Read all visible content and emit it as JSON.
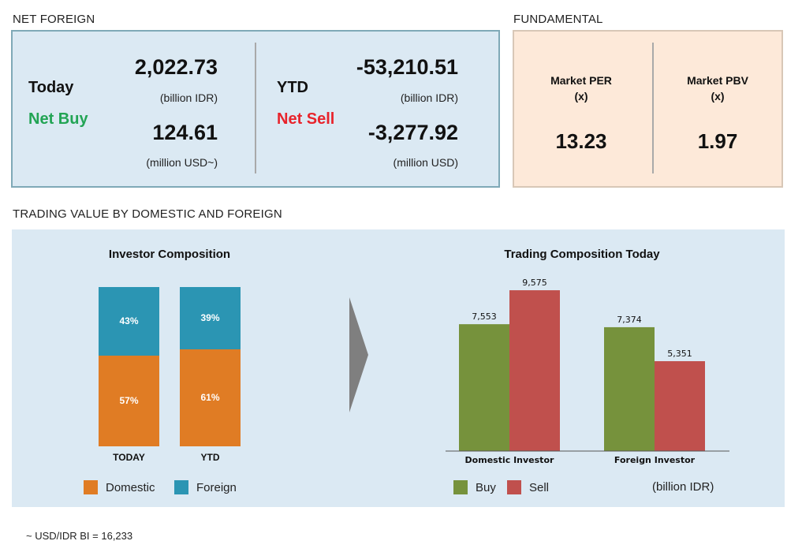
{
  "net_foreign": {
    "heading": "NET FOREIGN",
    "today": {
      "label": "Today",
      "status": "Net Buy",
      "value_idr": "2,022.73",
      "unit_idr": "(billion IDR)",
      "value_usd": "124.61",
      "unit_usd": "(million USD~)"
    },
    "ytd": {
      "label": "YTD",
      "status": "Net Sell",
      "value_idr": "-53,210.51",
      "unit_idr": "(billion IDR)",
      "value_usd": "-3,277.92",
      "unit_usd": "(million USD)"
    },
    "colors": {
      "buy": "#22a454",
      "sell": "#e8232b"
    }
  },
  "fundamental": {
    "heading": "FUNDAMENTAL",
    "per_label": "Market PER",
    "per_unit": "(x)",
    "per_value": "13.23",
    "pbv_label": "Market PBV",
    "pbv_unit": "(x)",
    "pbv_value": "1.97"
  },
  "trading_value": {
    "heading": "TRADING VALUE BY DOMESTIC AND FOREIGN",
    "investor_title": "Investor Composition",
    "trading_title": "Trading Composition Today",
    "legend_domestic": "Domestic",
    "legend_foreign": "Foreign",
    "legend_buy": "Buy",
    "legend_sell": "Sell",
    "unit_note": "(billion IDR)"
  },
  "chart_data": [
    {
      "type": "bar",
      "stacked": true,
      "title": "Investor Composition",
      "categories": [
        "TODAY",
        "YTD"
      ],
      "series": [
        {
          "name": "Domestic",
          "values": [
            57,
            61
          ],
          "labels": [
            "57%",
            "61%"
          ],
          "color": "#e07c24"
        },
        {
          "name": "Foreign",
          "values": [
            43,
            39
          ],
          "labels": [
            "43%",
            "39%"
          ],
          "color": "#2b95b3"
        }
      ],
      "ylim": [
        0,
        100
      ],
      "legend": "bottom"
    },
    {
      "type": "bar",
      "title": "Trading Composition Today",
      "categories": [
        "Domestic Investor",
        "Foreign Investor"
      ],
      "series": [
        {
          "name": "Buy",
          "values": [
            7553,
            7374
          ],
          "labels": [
            "7,553",
            "7,374"
          ],
          "color": "#76923c"
        },
        {
          "name": "Sell",
          "values": [
            9575,
            5351
          ],
          "labels": [
            "9,575",
            "5,351"
          ],
          "color": "#c0504d"
        }
      ],
      "ylim": [
        0,
        10000
      ],
      "legend": "bottom"
    }
  ],
  "footnote": "~ USD/IDR BI = 16,233"
}
